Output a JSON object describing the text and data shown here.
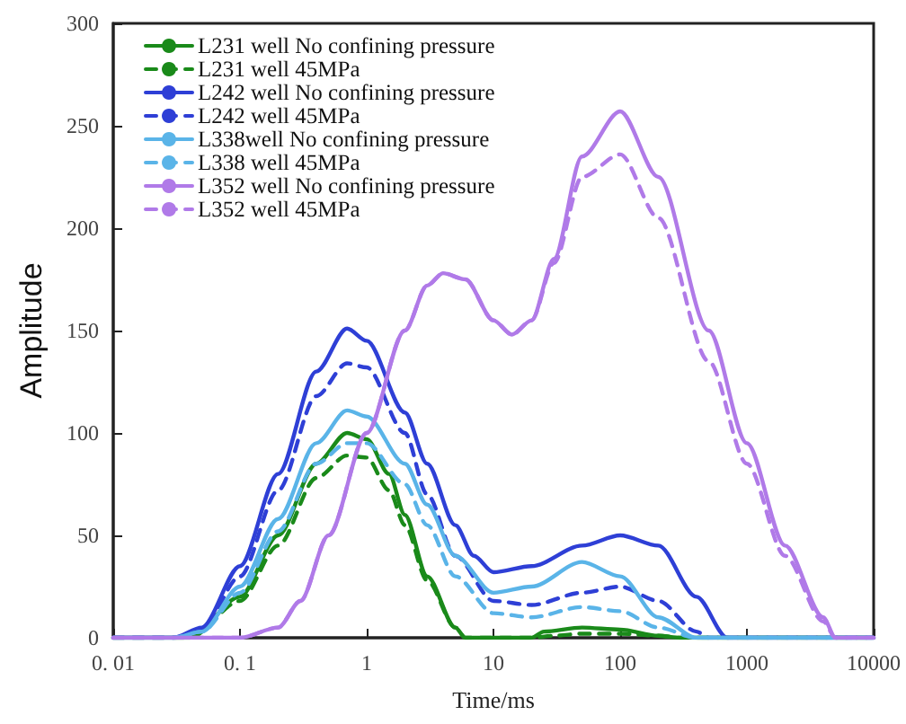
{
  "chart_data": {
    "type": "line",
    "xlabel": "Time/ms",
    "ylabel": "Amplitude",
    "log": "x",
    "legend": "top left",
    "marker": "none",
    "grid": false,
    "xlim": [
      0.01,
      10000
    ],
    "xticks": [
      {
        "value": 0.01,
        "label": "0. 01"
      },
      {
        "value": 0.1,
        "label": "0. 1"
      },
      1,
      10,
      100,
      1000,
      10000
    ],
    "ylim": [
      0,
      300
    ],
    "yticks": [
      0,
      50,
      100,
      150,
      200,
      250,
      300
    ],
    "series": [
      {
        "name": "L231 well No confining pressure",
        "color": "#1a8a1a",
        "line_style": "solid",
        "x": [
          0.01,
          0.04,
          0.1,
          0.2,
          0.4,
          0.7,
          1,
          1.5,
          2,
          3,
          5,
          6,
          20,
          25,
          50,
          100,
          200,
          300,
          10000
        ],
        "values": [
          0,
          0,
          20,
          50,
          85,
          100,
          97,
          80,
          60,
          30,
          5,
          0,
          0,
          3,
          5,
          4,
          1,
          0,
          0
        ]
      },
      {
        "name": "L231 well 45MPa",
        "color": "#1a8a1a",
        "line_style": "dashed",
        "x": [
          0.01,
          0.04,
          0.1,
          0.2,
          0.4,
          0.7,
          1,
          1.5,
          2,
          3,
          5,
          6,
          20,
          30,
          50,
          100,
          200,
          300,
          10000
        ],
        "values": [
          0,
          0,
          18,
          45,
          78,
          89,
          88,
          72,
          55,
          28,
          5,
          0,
          0,
          1,
          2,
          2,
          1,
          0,
          0
        ]
      },
      {
        "name": "L242 well No confining pressure",
        "color": "#2e3fd6",
        "line_style": "solid",
        "x": [
          0.01,
          0.03,
          0.05,
          0.1,
          0.2,
          0.4,
          0.7,
          1,
          2,
          3,
          5,
          7,
          10,
          20,
          50,
          100,
          200,
          400,
          700,
          10000
        ],
        "values": [
          0,
          0,
          5,
          35,
          80,
          130,
          151,
          145,
          110,
          85,
          55,
          40,
          32,
          35,
          45,
          50,
          45,
          20,
          0,
          0
        ]
      },
      {
        "name": "L242 well 45MPa",
        "color": "#2e3fd6",
        "line_style": "dashed",
        "x": [
          0.01,
          0.03,
          0.05,
          0.1,
          0.2,
          0.4,
          0.7,
          1,
          2,
          3,
          5,
          10,
          20,
          50,
          100,
          200,
          400,
          500,
          10000
        ],
        "values": [
          0,
          0,
          4,
          30,
          72,
          118,
          134,
          132,
          100,
          70,
          40,
          18,
          16,
          22,
          25,
          18,
          3,
          0,
          0
        ]
      },
      {
        "name": "L338well No confining pressure",
        "color": "#5ab4e8",
        "line_style": "solid",
        "x": [
          0.01,
          0.03,
          0.05,
          0.1,
          0.2,
          0.4,
          0.7,
          1,
          2,
          3,
          5,
          10,
          20,
          50,
          100,
          200,
          400,
          10000
        ],
        "values": [
          0,
          0,
          3,
          25,
          58,
          95,
          111,
          108,
          85,
          65,
          40,
          22,
          25,
          37,
          30,
          10,
          0,
          0
        ]
      },
      {
        "name": "L338 well 45MPa",
        "color": "#5ab4e8",
        "line_style": "dashed",
        "x": [
          0.01,
          0.03,
          0.05,
          0.1,
          0.2,
          0.4,
          0.7,
          1,
          2,
          3,
          5,
          10,
          20,
          50,
          100,
          200,
          400,
          10000
        ],
        "values": [
          0,
          0,
          3,
          22,
          52,
          85,
          95,
          95,
          75,
          55,
          30,
          12,
          10,
          15,
          13,
          5,
          0,
          0
        ]
      },
      {
        "name": "L352 well No confining pressure",
        "color": "#b07ae8",
        "line_style": "solid",
        "x": [
          0.01,
          0.1,
          0.2,
          0.3,
          0.5,
          1,
          2,
          3,
          4,
          6,
          10,
          14,
          20,
          30,
          50,
          100,
          200,
          500,
          1000,
          2000,
          4000,
          5000,
          10000
        ],
        "values": [
          0,
          0,
          5,
          18,
          50,
          100,
          150,
          172,
          178,
          175,
          155,
          148,
          155,
          185,
          235,
          257,
          225,
          150,
          95,
          45,
          10,
          0,
          0
        ]
      },
      {
        "name": "L352 well 45MPa",
        "color": "#b07ae8",
        "line_style": "dashed",
        "x": [
          0.01,
          0.1,
          0.2,
          0.3,
          0.5,
          1,
          2,
          3,
          4,
          6,
          10,
          14,
          20,
          30,
          50,
          100,
          200,
          500,
          1000,
          2000,
          4000,
          5000,
          10000
        ],
        "values": [
          0,
          0,
          5,
          18,
          50,
          100,
          150,
          172,
          178,
          175,
          155,
          148,
          155,
          183,
          225,
          236,
          205,
          135,
          85,
          40,
          8,
          0,
          0
        ]
      }
    ]
  }
}
